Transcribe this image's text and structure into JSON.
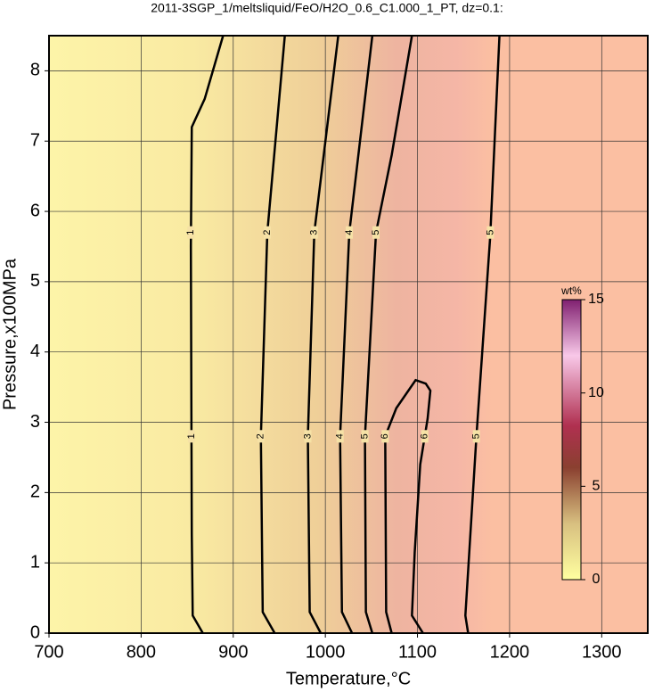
{
  "chart_data": {
    "type": "contour",
    "title": "2011-3SGP_1/meltsliquid/FeO/H2O_0.6_C1.000_1_PT, dz=0.1:",
    "xlabel": "Temperature,°C",
    "ylabel": "Pressure,x100MPa",
    "xlim": [
      700,
      1350
    ],
    "ylim": [
      0,
      8.5
    ],
    "xticks": [
      700,
      800,
      900,
      1000,
      1100,
      1200,
      1300
    ],
    "yticks": [
      0,
      1,
      2,
      3,
      4,
      5,
      6,
      7,
      8
    ],
    "grid": true,
    "contours": [
      {
        "level": 1,
        "x": [
          867,
          856,
          855,
          854,
          855,
          869,
          889
        ],
        "y": [
          0,
          0.25,
          1.4,
          5.5,
          7.2,
          7.6,
          8.5
        ]
      },
      {
        "level": 2,
        "x": [
          945,
          932,
          930,
          937,
          956
        ],
        "y": [
          0,
          0.3,
          2.8,
          5.7,
          8.5
        ]
      },
      {
        "level": 3,
        "x": [
          995,
          983,
          981,
          988,
          1014
        ],
        "y": [
          0,
          0.3,
          2.8,
          5.7,
          8.5
        ]
      },
      {
        "level": 4,
        "x": [
          1029,
          1018,
          1016,
          1026,
          1051
        ],
        "y": [
          0,
          0.3,
          2.8,
          5.7,
          8.5
        ]
      },
      {
        "level": 5,
        "x": [
          1051,
          1044,
          1043,
          1055,
          1072,
          1094
        ],
        "y": [
          0,
          0.3,
          2.8,
          5.7,
          6.8,
          8.5
        ]
      },
      {
        "level": 6,
        "x": [
          1072,
          1066,
          1065,
          1077,
          1098,
          1109,
          1114,
          1111,
          1103,
          1097,
          1094,
          1106
        ],
        "y": [
          0,
          0.3,
          2.8,
          3.2,
          3.6,
          3.55,
          3.45,
          3.05,
          2.4,
          1.15,
          0.25,
          0
        ]
      },
      {
        "level": 5,
        "x": [
          1155,
          1152,
          1164,
          1179,
          1189
        ],
        "y": [
          0,
          0.25,
          2.8,
          5.65,
          8.5
        ]
      }
    ],
    "colorbar": {
      "label": "wt%",
      "clim": [
        0,
        15
      ],
      "ticks": [
        0,
        5,
        10,
        15
      ]
    }
  }
}
